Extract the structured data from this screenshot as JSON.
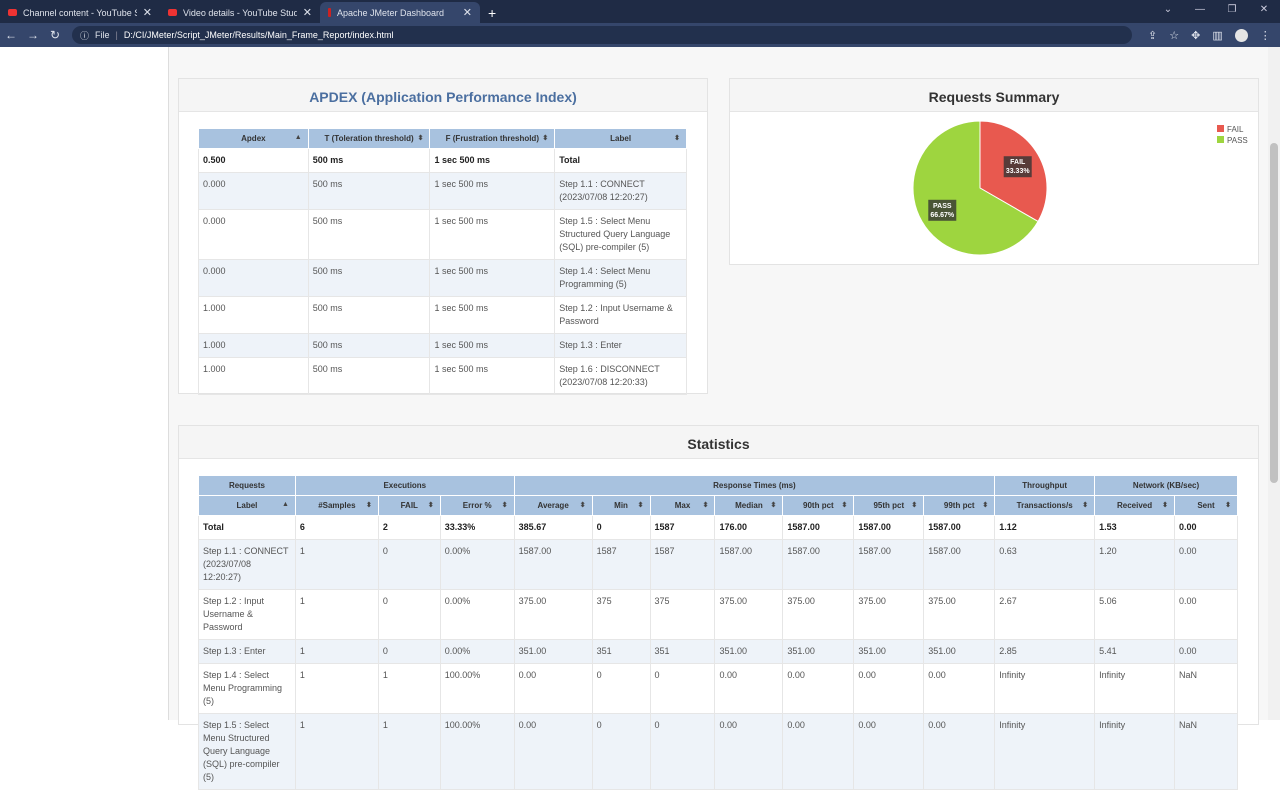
{
  "browser": {
    "tabs": [
      {
        "title": "Channel content - YouTube Studio"
      },
      {
        "title": "Video details - YouTube Studio"
      },
      {
        "title": "Apache JMeter Dashboard"
      }
    ],
    "file_label": "File",
    "url": "D:/CI/JMeter/Script_JMeter/Results/Main_Frame_Report/index.html"
  },
  "apdex": {
    "title": "APDEX (Application Performance Index)",
    "headers": [
      "Apdex",
      "T (Toleration threshold)",
      "F (Frustration threshold)",
      "Label"
    ],
    "rows": [
      [
        "0.500",
        "500 ms",
        "1 sec 500 ms",
        "Total"
      ],
      [
        "0.000",
        "500 ms",
        "1 sec 500 ms",
        "Step 1.1 : CONNECT (2023/07/08 12:20:27)"
      ],
      [
        "0.000",
        "500 ms",
        "1 sec 500 ms",
        "Step 1.5 : Select Menu Structured Query Language (SQL) pre-compiler (5)"
      ],
      [
        "0.000",
        "500 ms",
        "1 sec 500 ms",
        "Step 1.4 : Select Menu Programming (5)"
      ],
      [
        "1.000",
        "500 ms",
        "1 sec 500 ms",
        "Step 1.2 : Input Username & Password"
      ],
      [
        "1.000",
        "500 ms",
        "1 sec 500 ms",
        "Step 1.3 : Enter"
      ],
      [
        "1.000",
        "500 ms",
        "1 sec 500 ms",
        "Step 1.6 : DISCONNECT (2023/07/08 12:20:33)"
      ]
    ]
  },
  "summary": {
    "title": "Requests Summary"
  },
  "chart_data": {
    "type": "pie",
    "title": "Requests Summary",
    "legend": "top-right",
    "slices": [
      {
        "name": "FAIL",
        "value": 33.33,
        "label": "33.33%",
        "color": "#e8594f"
      },
      {
        "name": "PASS",
        "value": 66.67,
        "label": "66.67%",
        "color": "#9ed53f"
      }
    ]
  },
  "statistics": {
    "title": "Statistics",
    "groups": [
      {
        "label": "Requests",
        "span": 1
      },
      {
        "label": "Executions",
        "span": 3
      },
      {
        "label": "Response Times (ms)",
        "span": 7
      },
      {
        "label": "Throughput",
        "span": 1
      },
      {
        "label": "Network (KB/sec)",
        "span": 2
      }
    ],
    "headers": [
      "Label",
      "#Samples",
      "FAIL",
      "Error %",
      "Average",
      "Min",
      "Max",
      "Median",
      "90th pct",
      "95th pct",
      "99th pct",
      "Transactions/s",
      "Received",
      "Sent"
    ],
    "rows": [
      [
        "Total",
        "6",
        "2",
        "33.33%",
        "385.67",
        "0",
        "1587",
        "176.00",
        "1587.00",
        "1587.00",
        "1587.00",
        "1.12",
        "1.53",
        "0.00"
      ],
      [
        "Step 1.1 : CONNECT (2023/07/08 12:20:27)",
        "1",
        "0",
        "0.00%",
        "1587.00",
        "1587",
        "1587",
        "1587.00",
        "1587.00",
        "1587.00",
        "1587.00",
        "0.63",
        "1.20",
        "0.00"
      ],
      [
        "Step 1.2 : Input Username & Password",
        "1",
        "0",
        "0.00%",
        "375.00",
        "375",
        "375",
        "375.00",
        "375.00",
        "375.00",
        "375.00",
        "2.67",
        "5.06",
        "0.00"
      ],
      [
        "Step 1.3 : Enter",
        "1",
        "0",
        "0.00%",
        "351.00",
        "351",
        "351",
        "351.00",
        "351.00",
        "351.00",
        "351.00",
        "2.85",
        "5.41",
        "0.00"
      ],
      [
        "Step 1.4 : Select Menu Programming (5)",
        "1",
        "1",
        "100.00%",
        "0.00",
        "0",
        "0",
        "0.00",
        "0.00",
        "0.00",
        "0.00",
        "Infinity",
        "Infinity",
        "NaN"
      ],
      [
        "Step 1.5 : Select Menu Structured Query Language (SQL) pre-compiler (5)",
        "1",
        "1",
        "100.00%",
        "0.00",
        "0",
        "0",
        "0.00",
        "0.00",
        "0.00",
        "0.00",
        "Infinity",
        "Infinity",
        "NaN"
      ]
    ]
  }
}
